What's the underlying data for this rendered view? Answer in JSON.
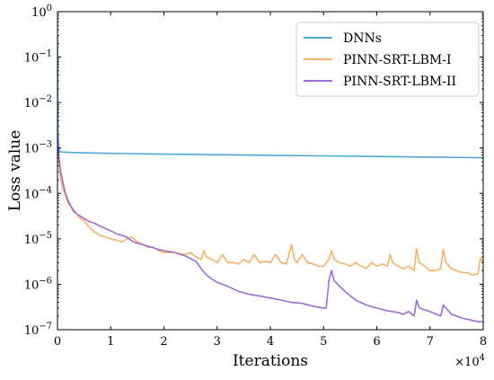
{
  "chart_data": {
    "type": "line",
    "xlabel": "Iterations",
    "ylabel": "Loss value",
    "x_multiplier": "×10",
    "x_multiplier_exp": "4",
    "xlim": [
      0,
      8
    ],
    "ylim_log10": [
      -7,
      0
    ],
    "yscale": "log",
    "grid": false,
    "legend_position": "top-right",
    "xticks": [
      {
        "value": 0,
        "label": "0"
      },
      {
        "value": 1,
        "label": "1"
      },
      {
        "value": 2,
        "label": "2"
      },
      {
        "value": 3,
        "label": "3"
      },
      {
        "value": 4,
        "label": "4"
      },
      {
        "value": 5,
        "label": "5"
      },
      {
        "value": 6,
        "label": "6"
      },
      {
        "value": 7,
        "label": "7"
      },
      {
        "value": 8,
        "label": "8"
      }
    ],
    "yticks": [
      {
        "exp": 0,
        "base": "10",
        "sup": "0"
      },
      {
        "exp": -1,
        "base": "10",
        "sup": "−1"
      },
      {
        "exp": -2,
        "base": "10",
        "sup": "−2"
      },
      {
        "exp": -3,
        "base": "10",
        "sup": "−3"
      },
      {
        "exp": -4,
        "base": "10",
        "sup": "−4"
      },
      {
        "exp": -5,
        "base": "10",
        "sup": "−5"
      },
      {
        "exp": -6,
        "base": "10",
        "sup": "−6"
      },
      {
        "exp": -7,
        "base": "10",
        "sup": "−7"
      }
    ],
    "series": [
      {
        "name": "DNNs",
        "color": "#4fa8d8",
        "x": [
          0,
          0.01,
          0.03,
          0.05,
          0.2,
          0.5,
          1,
          2,
          3,
          4,
          5,
          6,
          7,
          8
        ],
        "y": [
          0.3,
          0.002,
          0.0009,
          0.00082,
          0.0008,
          0.00078,
          0.00076,
          0.00073,
          0.00071,
          0.00069,
          0.00067,
          0.00065,
          0.00063,
          0.00061
        ]
      },
      {
        "name": "PINN-SRT-LBM-I",
        "color": "#f7b267",
        "x": [
          0,
          0.02,
          0.05,
          0.1,
          0.15,
          0.2,
          0.3,
          0.4,
          0.5,
          0.6,
          0.7,
          0.8,
          0.9,
          1.0,
          1.1,
          1.2,
          1.3,
          1.4,
          1.5,
          1.6,
          1.7,
          1.8,
          1.9,
          2.0,
          2.2,
          2.4,
          2.5,
          2.6,
          2.7,
          2.75,
          2.8,
          2.9,
          3.0,
          3.1,
          3.2,
          3.3,
          3.4,
          3.5,
          3.6,
          3.7,
          3.8,
          3.9,
          4.0,
          4.1,
          4.2,
          4.3,
          4.4,
          4.45,
          4.5,
          4.6,
          4.7,
          4.8,
          4.9,
          5.0,
          5.1,
          5.15,
          5.2,
          5.3,
          5.4,
          5.5,
          5.6,
          5.7,
          5.8,
          5.9,
          6.0,
          6.1,
          6.2,
          6.25,
          6.3,
          6.4,
          6.5,
          6.6,
          6.7,
          6.75,
          6.8,
          6.9,
          7.0,
          7.1,
          7.2,
          7.25,
          7.3,
          7.4,
          7.5,
          7.6,
          7.7,
          7.8,
          7.9,
          7.95,
          8.0
        ],
        "y": [
          0.0015,
          0.0006,
          0.00025,
          0.00013,
          9e-05,
          6e-05,
          4.5e-05,
          3e-05,
          2.5e-05,
          1.8e-05,
          1.4e-05,
          1.2e-05,
          1.1e-05,
          1e-05,
          9.5e-06,
          8.5e-06,
          1e-05,
          1.1e-05,
          8.5e-06,
          7.5e-06,
          6.5e-06,
          6.5e-06,
          5.5e-06,
          5e-06,
          5e-06,
          4.5e-06,
          5e-06,
          4e-06,
          3.5e-06,
          5.5e-06,
          4e-06,
          3.5e-06,
          3e-06,
          4.5e-06,
          3e-06,
          3e-06,
          2.8e-06,
          3.5e-06,
          3e-06,
          4.5e-06,
          3e-06,
          3.2e-06,
          3e-06,
          4.5e-06,
          3e-06,
          2.8e-06,
          7.5e-06,
          3.5e-06,
          3e-06,
          4.5e-06,
          3e-06,
          2.8e-06,
          2.5e-06,
          2.5e-06,
          3.5e-06,
          5.5e-06,
          3.5e-06,
          3e-06,
          2.8e-06,
          2.5e-06,
          3e-06,
          2.5e-06,
          2.2e-06,
          3e-06,
          2.5e-06,
          2.8e-06,
          2.5e-06,
          4.5e-06,
          3e-06,
          2.5e-06,
          2.2e-06,
          2.5e-06,
          2e-06,
          6e-06,
          3e-06,
          2.5e-06,
          2e-06,
          2e-06,
          2.2e-06,
          6e-06,
          3e-06,
          2.2e-06,
          2e-06,
          1.8e-06,
          1.8e-06,
          1.6e-06,
          1.7e-06,
          3.8e-06,
          3e-06
        ]
      },
      {
        "name": "PINN-SRT-LBM-II",
        "color": "#9b6fd3",
        "x": [
          0,
          0.02,
          0.05,
          0.1,
          0.15,
          0.2,
          0.3,
          0.4,
          0.5,
          0.6,
          0.7,
          0.8,
          0.9,
          1.0,
          1.1,
          1.2,
          1.3,
          1.4,
          1.5,
          1.6,
          1.7,
          1.8,
          1.9,
          2.0,
          2.2,
          2.4,
          2.6,
          2.7,
          2.8,
          2.9,
          3.0,
          3.2,
          3.4,
          3.6,
          3.8,
          4.0,
          4.2,
          4.4,
          4.6,
          4.8,
          5.0,
          5.05,
          5.1,
          5.15,
          5.2,
          5.3,
          5.4,
          5.6,
          5.8,
          6.0,
          6.2,
          6.4,
          6.5,
          6.6,
          6.7,
          6.75,
          6.8,
          7.0,
          7.2,
          7.25,
          7.4,
          7.6,
          7.8,
          7.9,
          8.0
        ],
        "y": [
          0.002,
          0.0008,
          0.00035,
          0.00018,
          0.0001,
          7e-05,
          4e-05,
          3.3e-05,
          2.8e-05,
          2.4e-05,
          2.2e-05,
          1.9e-05,
          1.7e-05,
          1.5e-05,
          1.3e-05,
          1.2e-05,
          1.1e-05,
          9e-06,
          8e-06,
          7.5e-06,
          6.8e-06,
          6.4e-06,
          5.8e-06,
          5.5e-06,
          5e-06,
          4.2e-06,
          3.2e-06,
          2.2e-06,
          1.6e-06,
          1.3e-06,
          1.1e-06,
          9e-07,
          7e-07,
          6e-07,
          5.5e-07,
          5e-07,
          4.5e-07,
          4e-07,
          3.8e-07,
          3.3e-07,
          3e-07,
          3e-07,
          1.2e-06,
          2e-06,
          1.2e-06,
          9e-07,
          7e-07,
          4.5e-07,
          3.5e-07,
          3e-07,
          2.6e-07,
          2.4e-07,
          2.2e-07,
          2.5e-07,
          2e-07,
          4.5e-07,
          3e-07,
          2.5e-07,
          2e-07,
          3.5e-07,
          2.2e-07,
          1.8e-07,
          1.6e-07,
          1.5e-07,
          1.5e-07
        ]
      }
    ]
  }
}
